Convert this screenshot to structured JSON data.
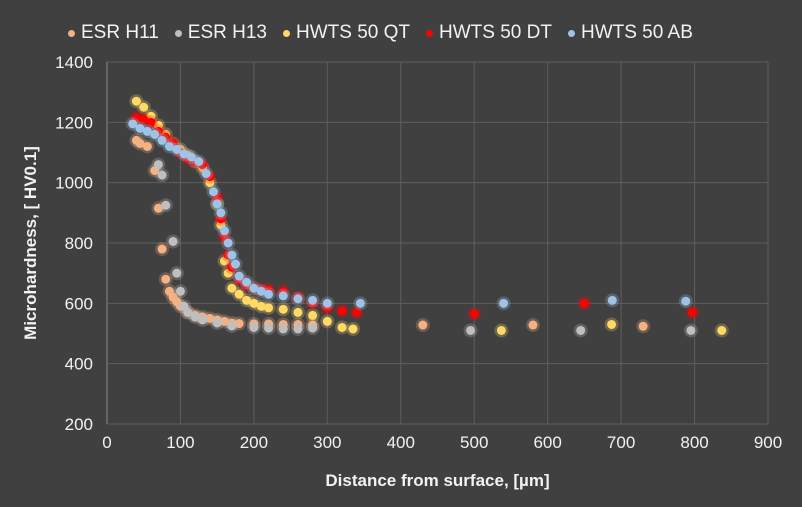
{
  "chart_data": {
    "type": "scatter",
    "title": "",
    "xlabel": "Distance from surface, [µm]",
    "ylabel": "Microhardness, [ HV0.1]",
    "xlim": [
      0,
      900
    ],
    "ylim": [
      200,
      1400
    ],
    "xticks": [
      0,
      100,
      200,
      300,
      400,
      500,
      600,
      700,
      800,
      900
    ],
    "yticks": [
      200,
      400,
      600,
      800,
      1000,
      1200,
      1400
    ],
    "grid": true,
    "legend_position": "top",
    "series": [
      {
        "name": "ESR H11",
        "color": "#f4b183",
        "x": [
          40,
          45,
          55,
          65,
          70,
          75,
          80,
          85,
          90,
          95,
          100,
          110,
          120,
          130,
          140,
          150,
          160,
          170,
          180,
          200,
          220,
          240,
          260,
          280,
          430,
          580,
          730
        ],
        "y": [
          1140,
          1130,
          1120,
          1040,
          915,
          780,
          680,
          640,
          620,
          605,
          590,
          570,
          560,
          555,
          550,
          545,
          540,
          535,
          533,
          532,
          532,
          530,
          530,
          528,
          528,
          528,
          524
        ]
      },
      {
        "name": "ESR H13",
        "color": "#bfbfbf",
        "x": [
          70,
          75,
          80,
          90,
          95,
          100,
          105,
          110,
          120,
          130,
          150,
          170,
          200,
          220,
          240,
          260,
          280,
          495,
          645,
          795
        ],
        "y": [
          1060,
          1025,
          925,
          805,
          700,
          640,
          590,
          570,
          555,
          545,
          535,
          525,
          520,
          518,
          515,
          515,
          518,
          510,
          510,
          510
        ]
      },
      {
        "name": "HWTS 50 QT",
        "color": "#ffd966",
        "x": [
          40,
          50,
          60,
          70,
          80,
          90,
          100,
          110,
          120,
          130,
          140,
          150,
          155,
          160,
          165,
          170,
          180,
          190,
          200,
          210,
          220,
          240,
          260,
          280,
          300,
          320,
          335,
          537,
          687,
          837
        ],
        "y": [
          1270,
          1250,
          1220,
          1190,
          1160,
          1130,
          1110,
          1090,
          1070,
          1050,
          1000,
          930,
          860,
          740,
          700,
          650,
          630,
          610,
          600,
          590,
          585,
          580,
          570,
          560,
          540,
          520,
          515,
          510,
          530,
          510
        ]
      },
      {
        "name": "HWTS 50 DT",
        "color": "#ff0000",
        "x": [
          40,
          50,
          60,
          70,
          80,
          90,
          100,
          110,
          120,
          130,
          140,
          150,
          155,
          160,
          165,
          170,
          180,
          190,
          200,
          210,
          220,
          240,
          260,
          280,
          300,
          320,
          340,
          500,
          650,
          797
        ],
        "y": [
          1215,
          1210,
          1200,
          1170,
          1150,
          1130,
          1100,
          1080,
          1070,
          1060,
          1020,
          950,
          880,
          820,
          760,
          720,
          680,
          660,
          650,
          645,
          645,
          640,
          620,
          600,
          585,
          575,
          570,
          565,
          600,
          570
        ]
      },
      {
        "name": "HWTS 50 AB",
        "color": "#9dc3e6",
        "x": [
          35,
          45,
          55,
          65,
          75,
          85,
          95,
          105,
          115,
          125,
          135,
          145,
          150,
          155,
          160,
          165,
          170,
          175,
          180,
          190,
          200,
          210,
          220,
          240,
          260,
          280,
          300,
          345,
          540,
          688,
          788
        ],
        "y": [
          1195,
          1180,
          1170,
          1160,
          1140,
          1120,
          1110,
          1095,
          1085,
          1070,
          1030,
          970,
          930,
          900,
          840,
          800,
          760,
          730,
          690,
          670,
          650,
          640,
          630,
          625,
          615,
          610,
          600,
          600,
          600,
          610,
          607
        ]
      }
    ]
  }
}
